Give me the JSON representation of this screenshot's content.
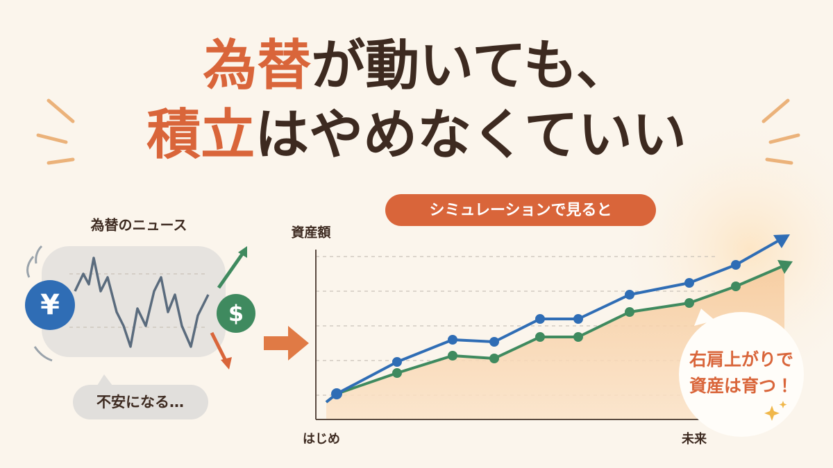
{
  "title": {
    "line1_highlight": "為替",
    "line1_rest": "が動いても、",
    "line2_highlight": "積立",
    "line2_rest": "はやめなくていい"
  },
  "left": {
    "label": "為替のニュース",
    "yen": "¥",
    "dollar": "$",
    "bubble": "不安になる…"
  },
  "right": {
    "badge": "シミュレーションで見ると",
    "y_label": "資産額",
    "x_start": "はじめ",
    "x_end": "未来",
    "callout": [
      "右肩上がりで",
      "資産は育つ！"
    ]
  }
}
